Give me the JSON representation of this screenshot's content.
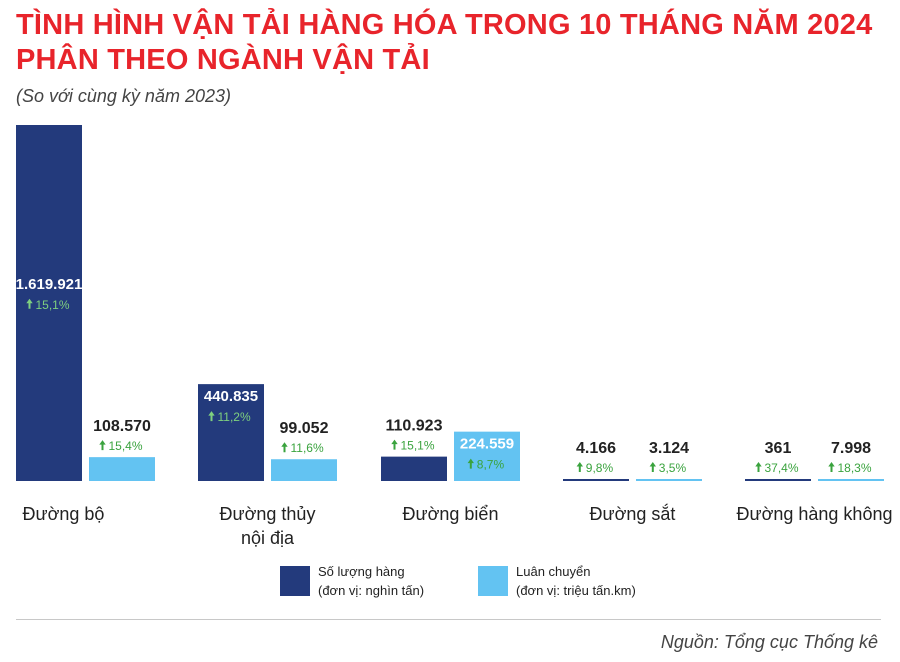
{
  "title_line1": "TÌNH HÌNH VẬN TẢI HÀNG HÓA TRONG 10 THÁNG NĂM 2024",
  "title_line2": "PHÂN THEO NGÀNH VẬN TẢI",
  "subtitle": "(So với cùng kỳ năm 2023)",
  "legend": {
    "volume_label": "Số lượng hàng",
    "volume_unit": "(đơn vị: nghìn tấn)",
    "turnover_label": "Luân chuyển",
    "turnover_unit": "(đơn vị: triệu tấn.km)"
  },
  "source": "Nguồn: Tổng cục Thống kê",
  "colors": {
    "title": "#e8242b",
    "volume": "#233a7c",
    "turnover": "#63c3f2",
    "growth": "#3aa33e",
    "label": "#222222"
  },
  "chart_data": {
    "type": "bar",
    "categories": [
      "Đường bộ",
      "Đường thủy nội địa",
      "Đường biển",
      "Đường sắt",
      "Đường hàng không"
    ],
    "category_lines": [
      [
        "Đường bộ"
      ],
      [
        "Đường thủy",
        "nội địa"
      ],
      [
        "Đường biển"
      ],
      [
        "Đường sắt"
      ],
      [
        "Đường hàng không"
      ]
    ],
    "series": [
      {
        "name": "Số lượng hàng",
        "values": [
          1619921,
          440835,
          110923,
          4166,
          361
        ],
        "value_labels": [
          "1.619.921",
          "440.835",
          "110.923",
          "4.166",
          "361"
        ],
        "growth_labels": [
          "15,1%",
          "11,2%",
          "15,1%",
          "9,8%",
          "37,4%"
        ]
      },
      {
        "name": "Luân chuyển",
        "values": [
          108570,
          99052,
          224559,
          3124,
          7998
        ],
        "value_labels": [
          "108.570",
          "99.052",
          "224.559",
          "3.124",
          "7.998"
        ],
        "growth_labels": [
          "15,4%",
          "11,6%",
          "8,7%",
          "3,5%",
          "18,3%"
        ]
      }
    ],
    "legend_position": "bottom",
    "grid": false
  }
}
